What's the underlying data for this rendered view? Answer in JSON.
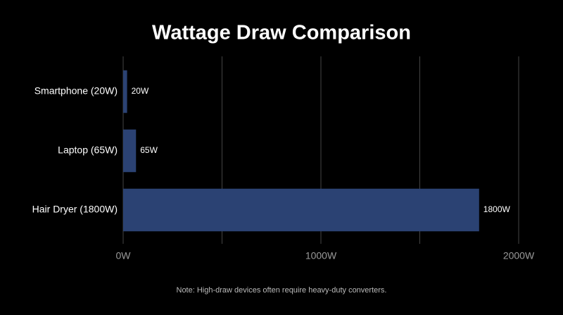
{
  "chart_data": {
    "type": "bar",
    "orientation": "horizontal",
    "title": "Wattage Draw Comparison",
    "categories": [
      "Smartphone (20W)",
      "Laptop (65W)",
      "Hair Dryer (1800W)"
    ],
    "values": [
      20,
      65,
      1800
    ],
    "value_labels": [
      "20W",
      "65W",
      "1800W"
    ],
    "color": "#2b4273",
    "xlim": [
      0,
      2000
    ],
    "xticks": [
      {
        "value": 0,
        "label": "0W"
      },
      {
        "value": 500,
        "label": null
      },
      {
        "value": 1000,
        "label": "1000W"
      },
      {
        "value": 1500,
        "label": null
      },
      {
        "value": 2000,
        "label": "2000W"
      }
    ],
    "grid": true,
    "note": "Note: High-draw devices often require heavy-duty converters."
  }
}
